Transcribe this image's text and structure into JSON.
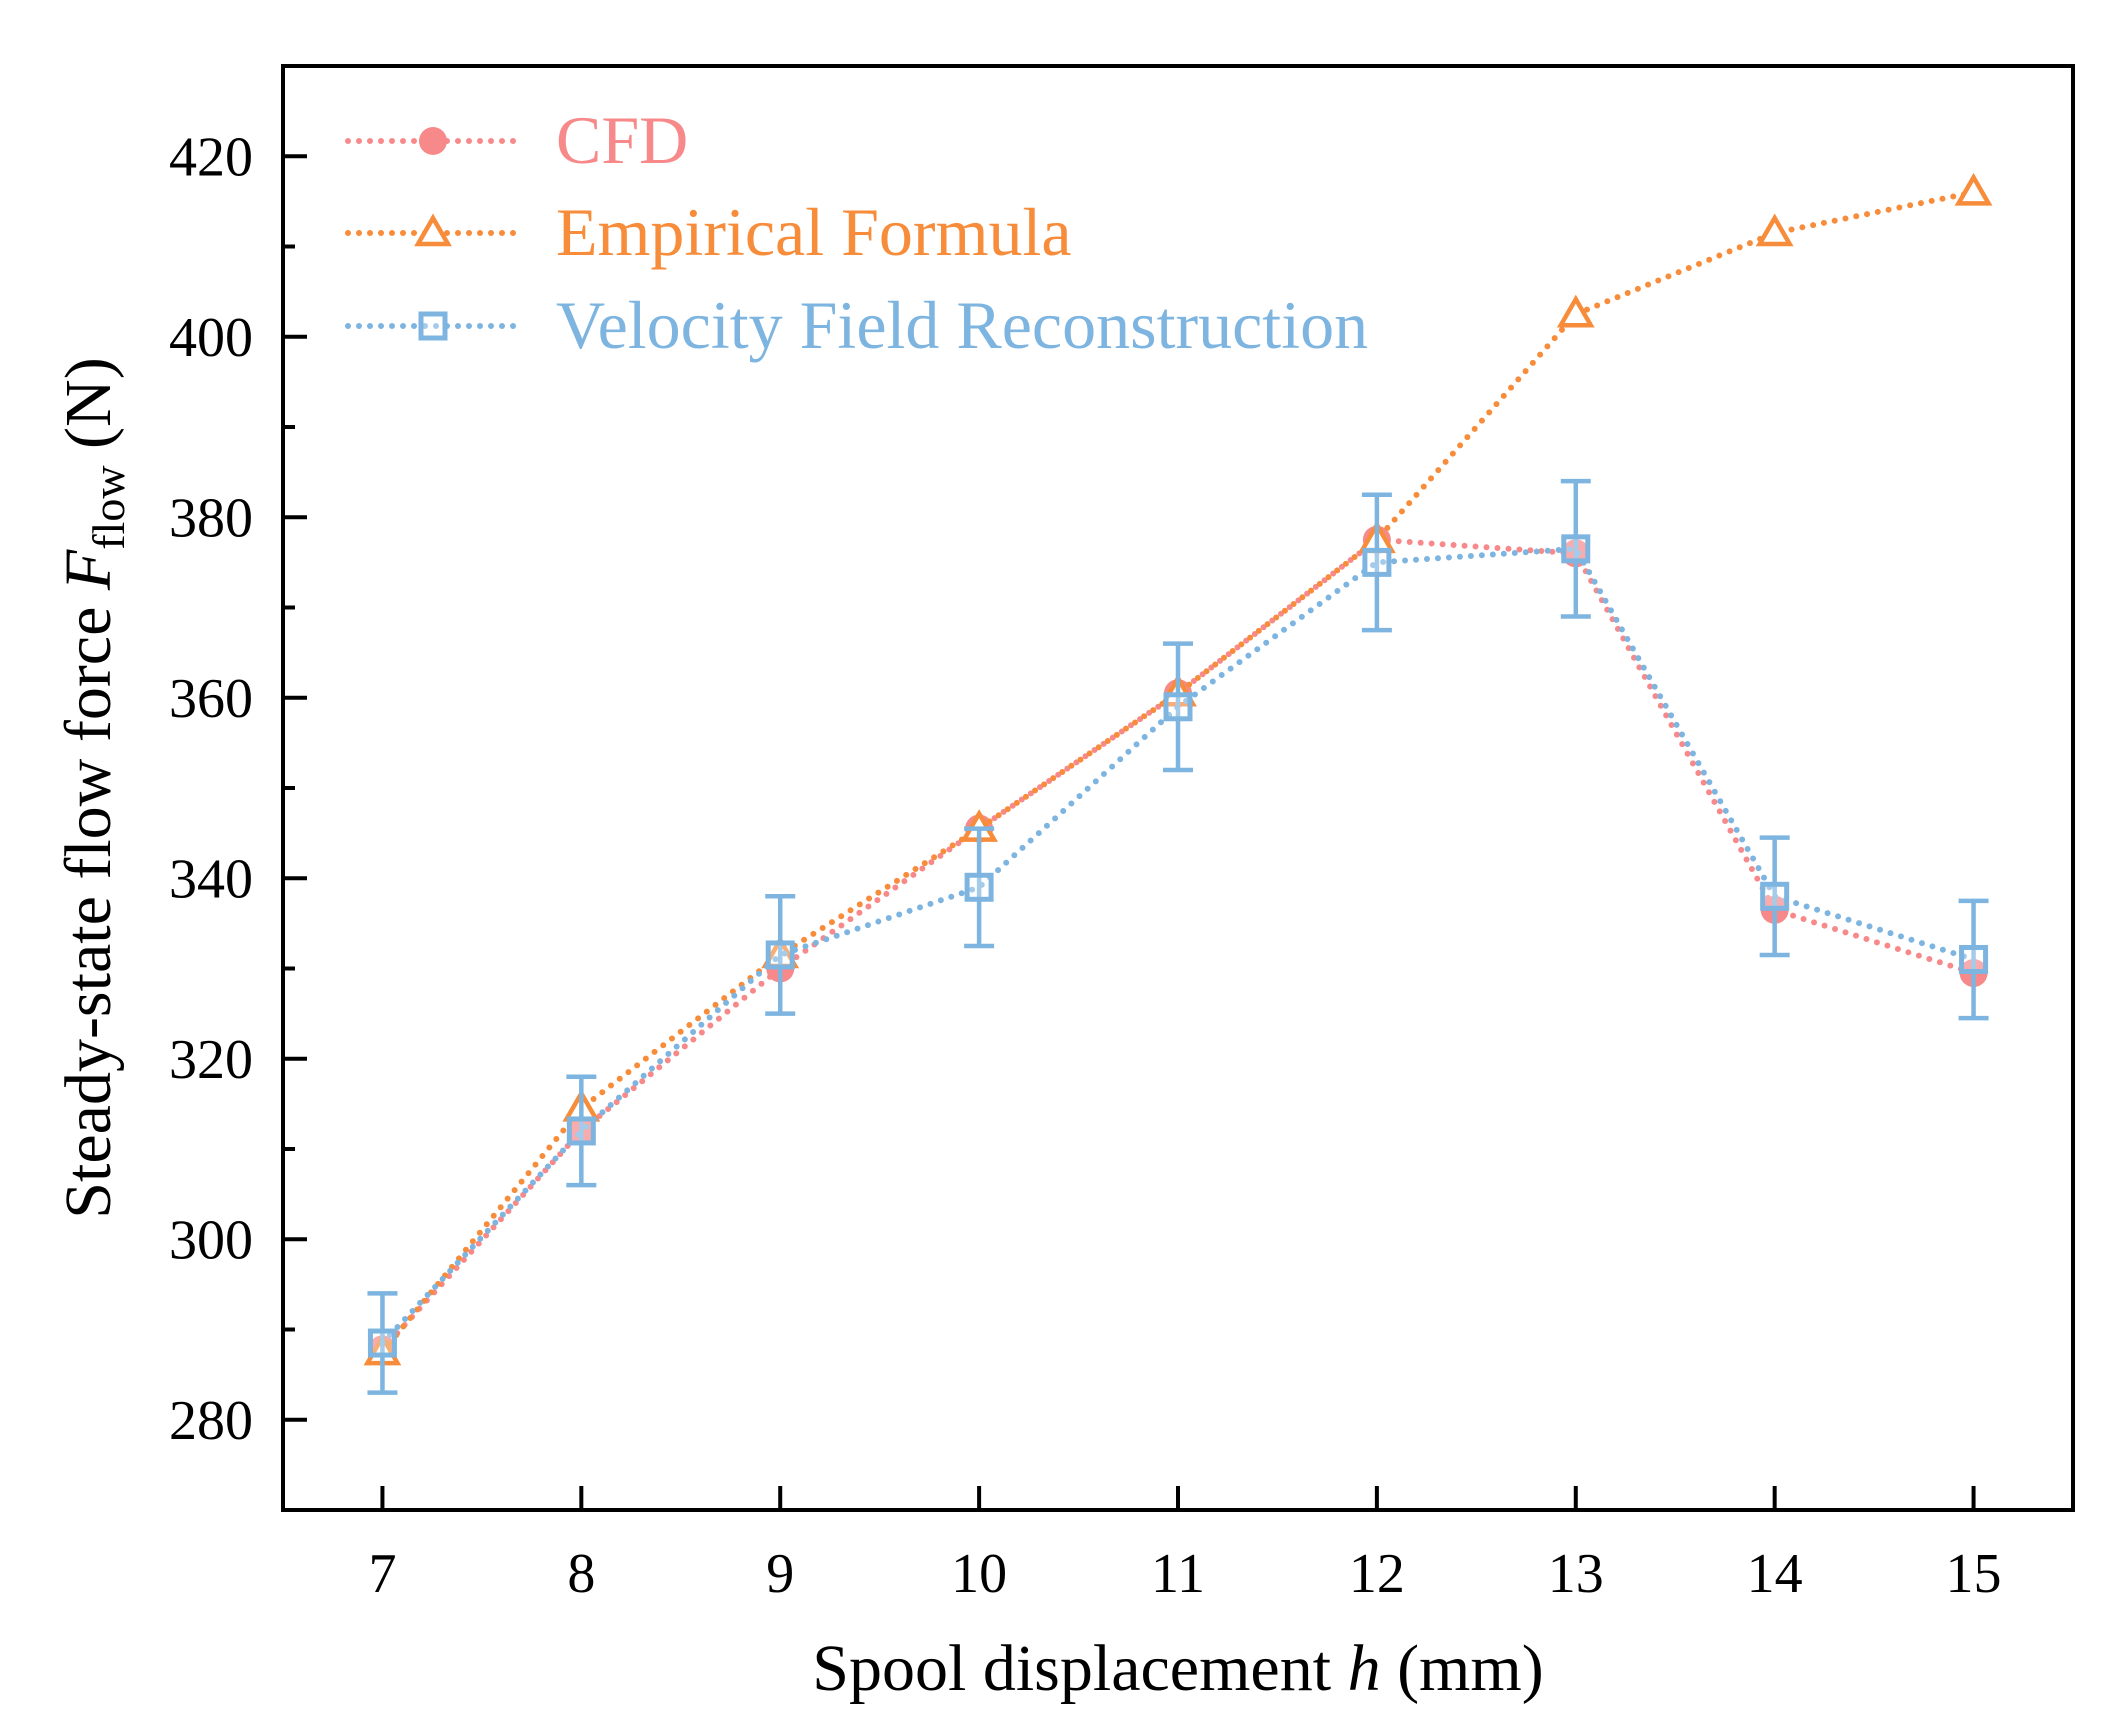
{
  "chart_data": {
    "type": "line",
    "xlabel": {
      "prefix": "Spool displacement ",
      "var": "h",
      "suffix": " (mm)"
    },
    "ylabel": {
      "prefix": "Steady-state flow force ",
      "var": "F",
      "sub": "flow",
      "suffix": " (N)"
    },
    "xlim": [
      6.5,
      15.5
    ],
    "ylim": [
      270,
      430
    ],
    "xticks": [
      7,
      8,
      9,
      10,
      11,
      12,
      13,
      14,
      15
    ],
    "yticks": [
      280,
      300,
      320,
      340,
      360,
      380,
      400,
      420
    ],
    "grid": false,
    "legend_position": "top-left",
    "x": [
      7,
      8,
      9,
      10,
      11,
      12,
      13,
      14,
      15
    ],
    "series": [
      {
        "name": "CFD",
        "color": "#f7898a",
        "marker": "circle",
        "values": [
          287.8,
          312,
          330,
          345.5,
          360.5,
          377.5,
          376,
          336.5,
          329.5
        ]
      },
      {
        "name": "Empirical Formula",
        "color": "#f78c3b",
        "marker": "triangle",
        "values": [
          287.5,
          314.5,
          331.5,
          345.5,
          360.5,
          377.5,
          402.5,
          411.5,
          416
        ]
      },
      {
        "name": "Velocity Field Reconstruction",
        "color": "#7db5e0",
        "marker": "square",
        "values": [
          288.5,
          312,
          331.5,
          339,
          359,
          375,
          376.5,
          338,
          331
        ],
        "error": [
          5.5,
          6,
          6.5,
          6.5,
          7,
          7.5,
          7.5,
          6.5,
          6.5
        ]
      }
    ]
  }
}
